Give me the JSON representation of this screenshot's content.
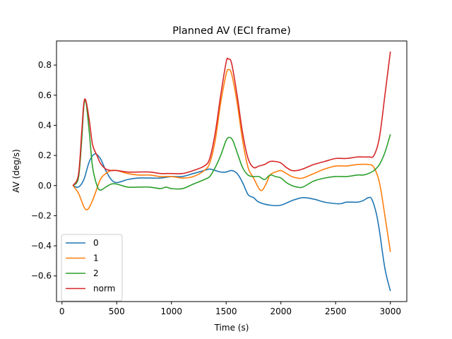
{
  "chart_data": {
    "type": "line",
    "title": "Planned AV (ECI frame)",
    "xlabel": "Time (s)",
    "ylabel": "AV (deg/s)",
    "xlim": [
      -50,
      3150
    ],
    "ylim": [
      -0.77,
      0.96
    ],
    "xticks": [
      0,
      500,
      1000,
      1500,
      2000,
      2500,
      3000
    ],
    "yticks": [
      -0.6,
      -0.4,
      -0.2,
      0.0,
      0.2,
      0.4,
      0.6,
      0.8
    ],
    "xtick_labels": [
      "0",
      "500",
      "1000",
      "1500",
      "2000",
      "2500",
      "3000"
    ],
    "ytick_labels": [
      "−0.6",
      "−0.4",
      "−0.2",
      "0.0",
      "0.2",
      "0.4",
      "0.6",
      "0.8"
    ],
    "grid": false,
    "legend_position": "lower-left",
    "series": [
      {
        "name": "0",
        "color": "#1f77b4",
        "points": [
          [
            100,
            0.0
          ],
          [
            150,
            -0.01
          ],
          [
            200,
            0.04
          ],
          [
            250,
            0.16
          ],
          [
            300,
            0.21
          ],
          [
            350,
            0.18
          ],
          [
            400,
            0.1
          ],
          [
            450,
            0.04
          ],
          [
            500,
            0.02
          ],
          [
            600,
            0.04
          ],
          [
            700,
            0.05
          ],
          [
            800,
            0.05
          ],
          [
            900,
            0.05
          ],
          [
            1000,
            0.06
          ],
          [
            1100,
            0.06
          ],
          [
            1200,
            0.08
          ],
          [
            1300,
            0.1
          ],
          [
            1350,
            0.11
          ],
          [
            1400,
            0.1
          ],
          [
            1450,
            0.09
          ],
          [
            1500,
            0.09
          ],
          [
            1550,
            0.1
          ],
          [
            1600,
            0.08
          ],
          [
            1650,
            0.02
          ],
          [
            1700,
            -0.06
          ],
          [
            1750,
            -0.08
          ],
          [
            1800,
            -0.11
          ],
          [
            1900,
            -0.13
          ],
          [
            2000,
            -0.13
          ],
          [
            2100,
            -0.1
          ],
          [
            2200,
            -0.08
          ],
          [
            2300,
            -0.09
          ],
          [
            2400,
            -0.11
          ],
          [
            2500,
            -0.12
          ],
          [
            2550,
            -0.12
          ],
          [
            2600,
            -0.11
          ],
          [
            2700,
            -0.11
          ],
          [
            2750,
            -0.1
          ],
          [
            2800,
            -0.08
          ],
          [
            2830,
            -0.09
          ],
          [
            2870,
            -0.18
          ],
          [
            2900,
            -0.3
          ],
          [
            2950,
            -0.55
          ],
          [
            3000,
            -0.7
          ]
        ]
      },
      {
        "name": "1",
        "color": "#ff7f0e",
        "points": [
          [
            100,
            0.0
          ],
          [
            150,
            -0.05
          ],
          [
            200,
            -0.14
          ],
          [
            230,
            -0.16
          ],
          [
            260,
            -0.13
          ],
          [
            300,
            -0.06
          ],
          [
            350,
            0.04
          ],
          [
            400,
            0.08
          ],
          [
            450,
            0.1
          ],
          [
            500,
            0.1
          ],
          [
            600,
            0.08
          ],
          [
            700,
            0.07
          ],
          [
            800,
            0.07
          ],
          [
            900,
            0.06
          ],
          [
            1000,
            0.06
          ],
          [
            1100,
            0.05
          ],
          [
            1200,
            0.06
          ],
          [
            1300,
            0.1
          ],
          [
            1350,
            0.15
          ],
          [
            1400,
            0.3
          ],
          [
            1450,
            0.55
          ],
          [
            1500,
            0.74
          ],
          [
            1520,
            0.77
          ],
          [
            1550,
            0.74
          ],
          [
            1600,
            0.55
          ],
          [
            1650,
            0.3
          ],
          [
            1700,
            0.12
          ],
          [
            1750,
            0.05
          ],
          [
            1800,
            -0.02
          ],
          [
            1830,
            -0.03
          ],
          [
            1870,
            0.02
          ],
          [
            1900,
            0.07
          ],
          [
            1950,
            0.09
          ],
          [
            2000,
            0.1
          ],
          [
            2050,
            0.08
          ],
          [
            2100,
            0.06
          ],
          [
            2150,
            0.05
          ],
          [
            2200,
            0.05
          ],
          [
            2300,
            0.08
          ],
          [
            2400,
            0.11
          ],
          [
            2500,
            0.13
          ],
          [
            2600,
            0.13
          ],
          [
            2700,
            0.14
          ],
          [
            2800,
            0.14
          ],
          [
            2850,
            0.12
          ],
          [
            2900,
            0.02
          ],
          [
            2950,
            -0.2
          ],
          [
            3000,
            -0.44
          ]
        ]
      },
      {
        "name": "2",
        "color": "#2ca02c",
        "points": [
          [
            100,
            0.0
          ],
          [
            150,
            0.05
          ],
          [
            180,
            0.3
          ],
          [
            200,
            0.53
          ],
          [
            220,
            0.55
          ],
          [
            250,
            0.35
          ],
          [
            280,
            0.12
          ],
          [
            320,
            0.0
          ],
          [
            350,
            -0.03
          ],
          [
            400,
            -0.01
          ],
          [
            450,
            0.01
          ],
          [
            500,
            0.01
          ],
          [
            600,
            -0.01
          ],
          [
            700,
            -0.01
          ],
          [
            800,
            -0.01
          ],
          [
            900,
            -0.02
          ],
          [
            950,
            -0.01
          ],
          [
            1000,
            -0.02
          ],
          [
            1100,
            -0.02
          ],
          [
            1200,
            0.01
          ],
          [
            1300,
            0.04
          ],
          [
            1350,
            0.06
          ],
          [
            1400,
            0.12
          ],
          [
            1450,
            0.2
          ],
          [
            1500,
            0.3
          ],
          [
            1530,
            0.32
          ],
          [
            1560,
            0.3
          ],
          [
            1600,
            0.22
          ],
          [
            1650,
            0.12
          ],
          [
            1700,
            0.07
          ],
          [
            1750,
            0.06
          ],
          [
            1800,
            0.06
          ],
          [
            1850,
            0.04
          ],
          [
            1900,
            0.07
          ],
          [
            1950,
            0.06
          ],
          [
            2000,
            0.05
          ],
          [
            2050,
            0.02
          ],
          [
            2100,
            0.0
          ],
          [
            2150,
            -0.01
          ],
          [
            2200,
            -0.01
          ],
          [
            2300,
            0.03
          ],
          [
            2400,
            0.05
          ],
          [
            2500,
            0.06
          ],
          [
            2600,
            0.06
          ],
          [
            2700,
            0.07
          ],
          [
            2750,
            0.07
          ],
          [
            2800,
            0.08
          ],
          [
            2850,
            0.1
          ],
          [
            2900,
            0.14
          ],
          [
            2950,
            0.22
          ],
          [
            3000,
            0.34
          ]
        ]
      },
      {
        "name": "norm",
        "color": "#d62728",
        "points": [
          [
            100,
            0.0
          ],
          [
            150,
            0.07
          ],
          [
            180,
            0.35
          ],
          [
            200,
            0.55
          ],
          [
            220,
            0.56
          ],
          [
            250,
            0.43
          ],
          [
            280,
            0.27
          ],
          [
            320,
            0.2
          ],
          [
            350,
            0.15
          ],
          [
            400,
            0.11
          ],
          [
            450,
            0.1
          ],
          [
            500,
            0.1
          ],
          [
            600,
            0.09
          ],
          [
            700,
            0.09
          ],
          [
            800,
            0.09
          ],
          [
            900,
            0.08
          ],
          [
            950,
            0.08
          ],
          [
            1000,
            0.08
          ],
          [
            1100,
            0.08
          ],
          [
            1200,
            0.1
          ],
          [
            1300,
            0.13
          ],
          [
            1350,
            0.18
          ],
          [
            1400,
            0.35
          ],
          [
            1450,
            0.6
          ],
          [
            1500,
            0.82
          ],
          [
            1520,
            0.84
          ],
          [
            1550,
            0.81
          ],
          [
            1600,
            0.6
          ],
          [
            1650,
            0.35
          ],
          [
            1700,
            0.18
          ],
          [
            1750,
            0.12
          ],
          [
            1800,
            0.13
          ],
          [
            1850,
            0.14
          ],
          [
            1900,
            0.16
          ],
          [
            1950,
            0.16
          ],
          [
            2000,
            0.15
          ],
          [
            2050,
            0.12
          ],
          [
            2100,
            0.1
          ],
          [
            2150,
            0.1
          ],
          [
            2200,
            0.11
          ],
          [
            2300,
            0.14
          ],
          [
            2400,
            0.16
          ],
          [
            2500,
            0.18
          ],
          [
            2600,
            0.18
          ],
          [
            2700,
            0.19
          ],
          [
            2800,
            0.19
          ],
          [
            2850,
            0.2
          ],
          [
            2900,
            0.32
          ],
          [
            2950,
            0.6
          ],
          [
            3000,
            0.89
          ]
        ]
      }
    ]
  }
}
